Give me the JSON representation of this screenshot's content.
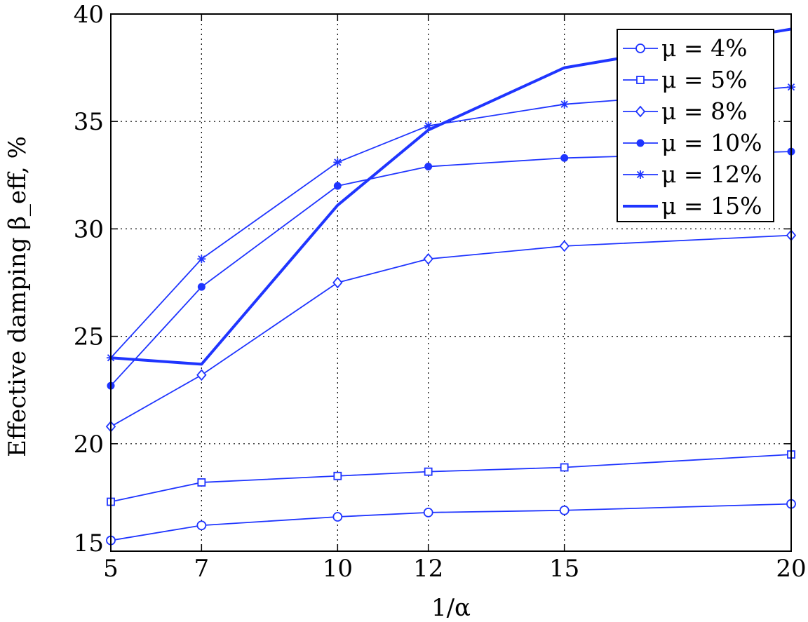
{
  "chart_data": {
    "type": "line",
    "title": "",
    "xlabel": "1/α",
    "ylabel": "Effective damping β_eff, %",
    "x": [
      5,
      7,
      10,
      12,
      15,
      20
    ],
    "xticks": [
      "5",
      "7",
      "10",
      "12",
      "15",
      "20"
    ],
    "yticks": [
      "15",
      "20",
      "25",
      "30",
      "35",
      "40"
    ],
    "xlim": [
      5,
      20
    ],
    "ylim": [
      15,
      40
    ],
    "grid": true,
    "legend_position": "top-right",
    "line_color": "#1f35ff",
    "series": [
      {
        "name": "μ = 4%",
        "marker": "circle",
        "line_style": "thin",
        "values": [
          15.5,
          16.2,
          16.6,
          16.8,
          16.9,
          17.2
        ]
      },
      {
        "name": "μ = 5%",
        "marker": "square",
        "line_style": "thin",
        "values": [
          17.3,
          18.2,
          18.5,
          18.7,
          18.9,
          19.5
        ]
      },
      {
        "name": "μ = 8%",
        "marker": "diamond",
        "line_style": "thin",
        "values": [
          20.8,
          23.2,
          27.5,
          28.6,
          29.2,
          29.7
        ]
      },
      {
        "name": "μ = 10%",
        "marker": "filled-circle",
        "line_style": "thin",
        "values": [
          22.7,
          27.3,
          32.0,
          32.9,
          33.3,
          33.6
        ]
      },
      {
        "name": "μ = 12%",
        "marker": "asterisk",
        "line_style": "thin",
        "values": [
          24.0,
          28.6,
          33.1,
          34.8,
          35.8,
          36.6
        ]
      },
      {
        "name": "μ = 15%",
        "marker": "none",
        "line_style": "thick",
        "values": [
          24.0,
          23.7,
          31.1,
          34.6,
          37.5,
          39.3
        ]
      }
    ]
  }
}
